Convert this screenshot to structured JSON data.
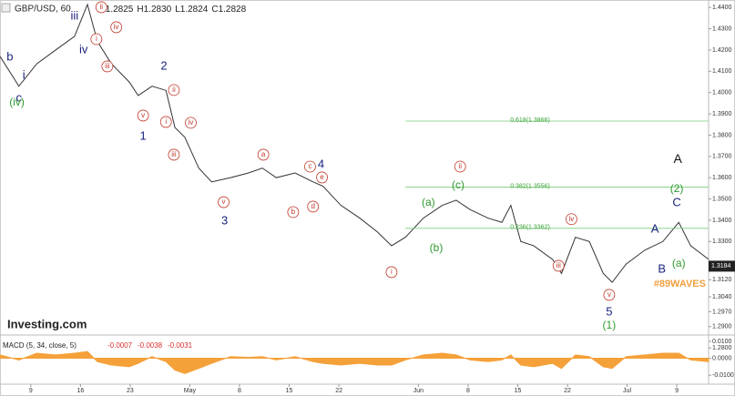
{
  "header": {
    "symbol": "GBP/USD, 60",
    "ohlc": [
      "O",
      "1.2825",
      "H",
      "1.2830",
      "L",
      "1.2824",
      "C",
      "1.2828"
    ]
  },
  "watermark": "Investing.com",
  "chart_data": [
    {
      "type": "line",
      "x": [
        -3.1,
        -1.2,
        0.6,
        2.5,
        4.4,
        5.7,
        6.7,
        8.1,
        9.9,
        10.8,
        12.2,
        13.6,
        14.5,
        15.5,
        16.9,
        18.2,
        20.1,
        21.9,
        23.3,
        24.7,
        26.6,
        28.4,
        29.4,
        31.2,
        33.1,
        34.9,
        36.3,
        37.7,
        39.5,
        41.4,
        42.8,
        44.2,
        46.0,
        47.4,
        48.3,
        49.3,
        50.6,
        52.5,
        53.4,
        54.8,
        56.2,
        57.6,
        58.5,
        59.9,
        61.8,
        63.6,
        65.2,
        66.4,
        68.2
      ],
      "values": [
        1.417,
        1.403,
        1.4135,
        1.42,
        1.4264,
        1.4414,
        1.424,
        1.4136,
        1.405,
        1.3986,
        1.403,
        1.401,
        1.3836,
        1.379,
        1.3645,
        1.358,
        1.36,
        1.3622,
        1.3645,
        1.36,
        1.3622,
        1.358,
        1.356,
        1.347,
        1.341,
        1.3344,
        1.328,
        1.332,
        1.341,
        1.347,
        1.3494,
        1.345,
        1.341,
        1.339,
        1.347,
        1.33,
        1.328,
        1.3216,
        1.315,
        1.332,
        1.33,
        1.315,
        1.3108,
        1.3194,
        1.326,
        1.33,
        1.339,
        1.328,
        1.3216
      ],
      "color": "#333333",
      "xlim": [
        -3.1,
        68.2
      ],
      "ylim": [
        1.2745,
        1.4435
      ],
      "xticks": [
        {
          "value": 0,
          "label": "9"
        },
        {
          "value": 5,
          "label": "16"
        },
        {
          "value": 10,
          "label": "23"
        },
        {
          "value": 16,
          "label": "May"
        },
        {
          "value": 21,
          "label": "8"
        },
        {
          "value": 26,
          "label": "15"
        },
        {
          "value": 31,
          "label": "22"
        },
        {
          "value": 39,
          "label": "Jun"
        },
        {
          "value": 44,
          "label": "8"
        },
        {
          "value": 49,
          "label": "15"
        },
        {
          "value": 54,
          "label": "22"
        },
        {
          "value": 60,
          "label": "Jul"
        },
        {
          "value": 65,
          "label": "9"
        }
      ],
      "yticks": [
        {
          "value": 1.44,
          "label": "1.4400"
        },
        {
          "value": 1.43,
          "label": "1.4300"
        },
        {
          "value": 1.42,
          "label": "1.4200"
        },
        {
          "value": 1.41,
          "label": "1.4100"
        },
        {
          "value": 1.4,
          "label": "1.4000"
        },
        {
          "value": 1.39,
          "label": "1.3900"
        },
        {
          "value": 1.38,
          "label": "1.3800"
        },
        {
          "value": 1.37,
          "label": "1.3700"
        },
        {
          "value": 1.36,
          "label": "1.3600"
        },
        {
          "value": 1.35,
          "label": "1.3500"
        },
        {
          "value": 1.34,
          "label": "1.3400"
        },
        {
          "value": 1.33,
          "label": "1.3300"
        },
        {
          "value": 1.312,
          "label": "1.3120"
        },
        {
          "value": 1.304,
          "label": "1.3040"
        },
        {
          "value": 1.297,
          "label": "1.2970"
        },
        {
          "value": 1.29,
          "label": "1.2900"
        },
        {
          "value": 1.28,
          "label": "1.2800"
        }
      ],
      "last_price": 1.3184,
      "fib_levels": [
        {
          "value": 1.3866,
          "label": "0.618(1.3866)",
          "from_x": 37.7
        },
        {
          "value": 1.3556,
          "label": "0.382(1.3556)",
          "from_x": 37.7
        },
        {
          "value": 1.3362,
          "label": "0.236(1.3362)",
          "from_x": 37.7
        }
      ],
      "annotations": [
        {
          "text": "b",
          "x": -2.1,
          "y": 1.4165,
          "style": "blue"
        },
        {
          "text": "i",
          "x": -0.7,
          "y": 1.408,
          "style": "blue"
        },
        {
          "text": "c",
          "x": -1.2,
          "y": 1.3973,
          "style": "blue"
        },
        {
          "text": "(iv)",
          "x": -1.4,
          "y": 1.3952,
          "style": "green"
        },
        {
          "text": "iii",
          "x": 4.4,
          "y": 1.4358,
          "style": "blue"
        },
        {
          "text": "iv",
          "x": 5.3,
          "y": 1.42,
          "style": "blue"
        },
        {
          "text": "ii",
          "x": 7.1,
          "y": 1.4401,
          "style": "circle"
        },
        {
          "text": "i",
          "x": 6.6,
          "y": 1.4251,
          "style": "circle"
        },
        {
          "text": "iv",
          "x": 8.6,
          "y": 1.4307,
          "style": "circle"
        },
        {
          "text": "iii",
          "x": 7.7,
          "y": 1.4123,
          "style": "circle"
        },
        {
          "text": "2",
          "x": 13.4,
          "y": 1.4123,
          "style": "blue"
        },
        {
          "text": "ii",
          "x": 14.4,
          "y": 1.4012,
          "style": "circle"
        },
        {
          "text": "v",
          "x": 11.3,
          "y": 1.3892,
          "style": "circle"
        },
        {
          "text": "1",
          "x": 11.3,
          "y": 1.3793,
          "style": "blue"
        },
        {
          "text": "i",
          "x": 13.6,
          "y": 1.3862,
          "style": "circle"
        },
        {
          "text": "iv",
          "x": 16.1,
          "y": 1.3858,
          "style": "circle"
        },
        {
          "text": "iii",
          "x": 14.4,
          "y": 1.3708,
          "style": "circle"
        },
        {
          "text": "v",
          "x": 19.4,
          "y": 1.3485,
          "style": "circle"
        },
        {
          "text": "3",
          "x": 19.5,
          "y": 1.3395,
          "style": "blue"
        },
        {
          "text": "a",
          "x": 23.4,
          "y": 1.3708,
          "style": "circle"
        },
        {
          "text": "c",
          "x": 28.1,
          "y": 1.3652,
          "style": "circle"
        },
        {
          "text": "4",
          "x": 29.2,
          "y": 1.3661,
          "style": "blue"
        },
        {
          "text": "e",
          "x": 29.3,
          "y": 1.3601,
          "style": "circle"
        },
        {
          "text": "b",
          "x": 26.4,
          "y": 1.3438,
          "style": "circle"
        },
        {
          "text": "d",
          "x": 28.4,
          "y": 1.3464,
          "style": "circle"
        },
        {
          "text": "ii",
          "x": 43.2,
          "y": 1.3652,
          "style": "circle"
        },
        {
          "text": "(c)",
          "x": 43.0,
          "y": 1.3562,
          "style": "green"
        },
        {
          "text": "(a)",
          "x": 40.0,
          "y": 1.3481,
          "style": "green"
        },
        {
          "text": "(b)",
          "x": 40.8,
          "y": 1.3267,
          "style": "green"
        },
        {
          "text": "i",
          "x": 36.3,
          "y": 1.3156,
          "style": "circle"
        },
        {
          "text": "iv",
          "x": 54.4,
          "y": 1.3405,
          "style": "circle"
        },
        {
          "text": "iii",
          "x": 53.1,
          "y": 1.3186,
          "style": "circle"
        },
        {
          "text": "v",
          "x": 58.2,
          "y": 1.3049,
          "style": "circle"
        },
        {
          "text": "5",
          "x": 58.2,
          "y": 1.2968,
          "style": "blue"
        },
        {
          "text": "(1)",
          "x": 58.2,
          "y": 1.2903,
          "style": "green"
        },
        {
          "text": "A",
          "x": 62.8,
          "y": 1.3357,
          "style": "blue"
        },
        {
          "text": "B",
          "x": 63.5,
          "y": 1.3168,
          "style": "blue"
        },
        {
          "text": "(a)",
          "x": 65.2,
          "y": 1.3194,
          "style": "green"
        },
        {
          "text": "A",
          "x": 65.1,
          "y": 1.3686,
          "style": "black"
        },
        {
          "text": "(2)",
          "x": 65.0,
          "y": 1.3545,
          "style": "green"
        },
        {
          "text": "C",
          "x": 65.0,
          "y": 1.3481,
          "style": "blue"
        },
        {
          "text": "#89WAVES",
          "x": 65.3,
          "y": 1.31,
          "style": "tag"
        }
      ]
    },
    {
      "type": "area",
      "title": "MACD (5, 34, close, 5)",
      "readings": [
        "-0.0007",
        "-0.0038",
        "-0.0031"
      ],
      "x": [
        -3.1,
        -1.2,
        0.6,
        2.5,
        4.4,
        5.7,
        6.7,
        8.1,
        9.9,
        10.8,
        12.2,
        13.6,
        14.5,
        15.5,
        16.9,
        18.2,
        20.1,
        21.9,
        23.3,
        24.7,
        26.6,
        28.4,
        29.4,
        31.2,
        33.1,
        34.9,
        36.3,
        37.7,
        39.5,
        41.4,
        42.8,
        44.2,
        46.0,
        47.4,
        48.3,
        49.3,
        50.6,
        52.5,
        53.4,
        54.8,
        56.2,
        57.6,
        58.5,
        59.9,
        61.8,
        63.6,
        65.2,
        66.4,
        68.2
      ],
      "values": [
        0.002,
        -0.001,
        0.003,
        0.002,
        0.003,
        0.004,
        -0.002,
        -0.004,
        -0.005,
        -0.003,
        0.001,
        -0.002,
        -0.007,
        -0.009,
        -0.006,
        -0.003,
        0.001,
        0.0005,
        0.001,
        -0.001,
        0.001,
        -0.002,
        -0.003,
        -0.004,
        -0.003,
        -0.004,
        -0.004,
        -0.001,
        0.002,
        0.003,
        0.002,
        -0.001,
        -0.002,
        -0.001,
        0.002,
        -0.004,
        -0.005,
        -0.003,
        -0.006,
        0.002,
        0.001,
        -0.005,
        -0.006,
        0.001,
        0.002,
        0.003,
        0.003,
        -0.001,
        -0.002
      ],
      "color": "#f5a13a",
      "xlim": [
        -3.1,
        68.2
      ],
      "ylim": [
        -0.0153,
        0.0116
      ],
      "yticks": [
        {
          "value": 0.01,
          "label": "0.0100"
        },
        {
          "value": 0,
          "label": "0.0000"
        },
        {
          "value": -0.01,
          "label": "-0.0100"
        }
      ]
    }
  ]
}
